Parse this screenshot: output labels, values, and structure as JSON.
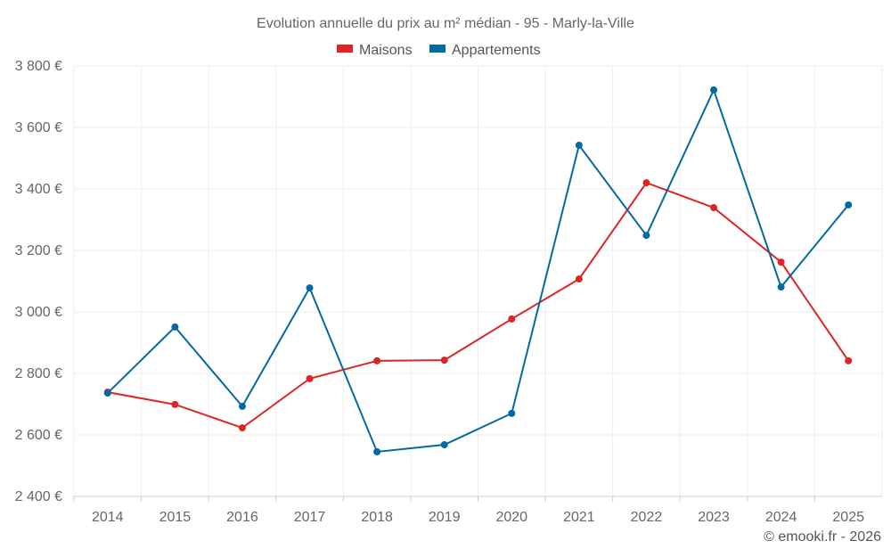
{
  "chart_data": {
    "type": "line",
    "title": "Evolution annuelle du prix au m² médian - 95 - Marly-la-Ville",
    "categories": [
      "2014",
      "2015",
      "2016",
      "2017",
      "2018",
      "2019",
      "2020",
      "2021",
      "2022",
      "2023",
      "2024",
      "2025"
    ],
    "series": [
      {
        "name": "Maisons",
        "color": "#dc2626",
        "values": [
          2739,
          2699,
          2623,
          2783,
          2841,
          2843,
          2977,
          3107,
          3420,
          3339,
          3162,
          2841
        ]
      },
      {
        "name": "Appartements",
        "color": "#0369a1",
        "values": [
          2736,
          2951,
          2693,
          3078,
          2545,
          2568,
          2670,
          3542,
          3249,
          3722,
          3081,
          3348
        ]
      }
    ],
    "ylim": [
      2400,
      3800
    ],
    "yticks": [
      2400,
      2600,
      2800,
      3000,
      3200,
      3400,
      3600,
      3800
    ],
    "ytick_labels": [
      "2 400 €",
      "2 600 €",
      "2 800 €",
      "3 000 €",
      "3 200 €",
      "3 400 €",
      "3 600 €",
      "3 800 €"
    ],
    "legend_position": "top-center",
    "grid": true
  },
  "credit": "© emooki.fr - 2026"
}
